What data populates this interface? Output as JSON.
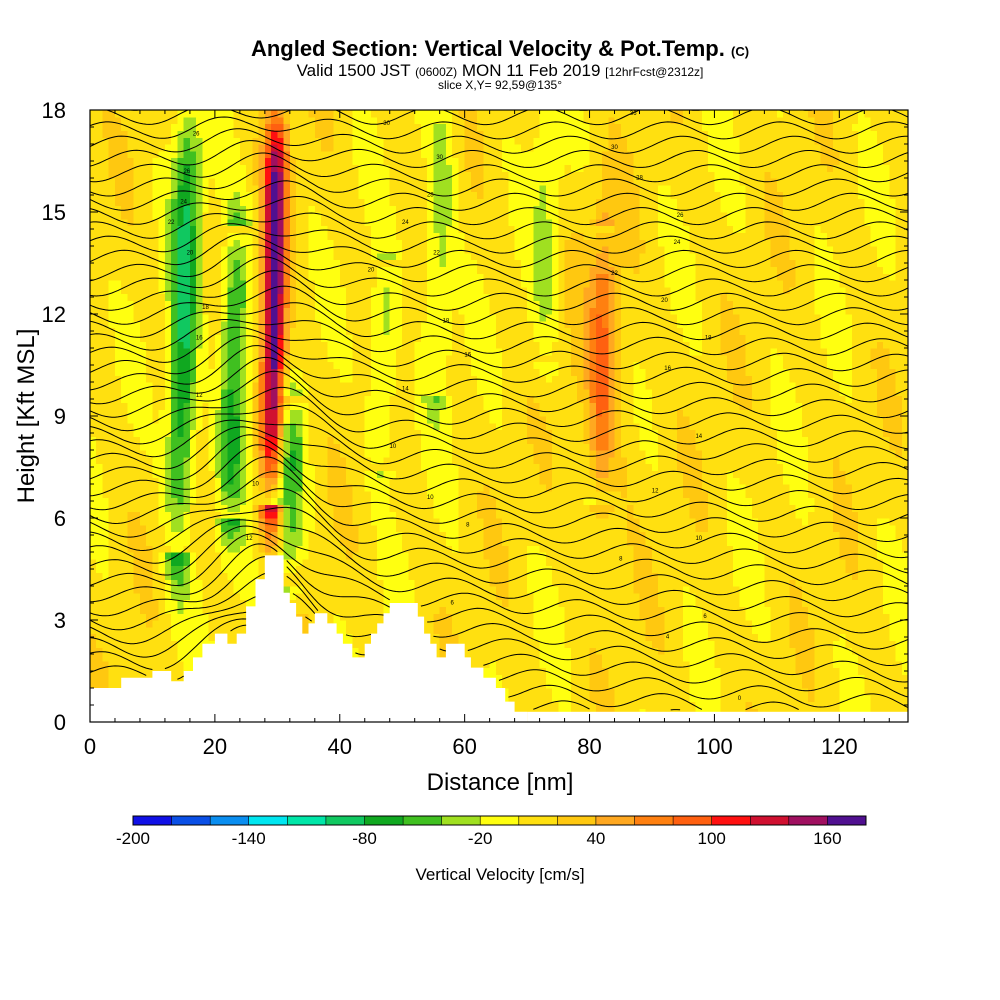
{
  "header": {
    "title": "Angled Section: Vertical Velocity & Pot.Temp.",
    "title_unit": "(C)",
    "valid_main": "Valid 1500 JST",
    "valid_utc": "(0600Z)",
    "valid_date": "MON 11 Feb 2019",
    "forecast": "[12hrFcst@2312z]",
    "slice": "slice X,Y= 92,59@135°"
  },
  "chart_data": {
    "type": "heatmap",
    "title": "Angled Section: Vertical Velocity & Pot.Temp.",
    "xlabel": "Distance [nm]",
    "ylabel": "Height [Kft MSL]",
    "xlim": [
      0,
      131
    ],
    "ylim": [
      0,
      18
    ],
    "x_ticks": [
      0,
      20,
      40,
      60,
      80,
      100,
      120
    ],
    "y_ticks": [
      0,
      3,
      6,
      9,
      12,
      15,
      18
    ],
    "grid": false,
    "colorbar": {
      "label": "Vertical Velocity [cm/s]",
      "range": [
        -200,
        180
      ],
      "step": 20,
      "tick_labels": [
        "-200",
        "-140",
        "-80",
        "-20",
        "40",
        "100",
        "160"
      ],
      "colors": [
        "#1010e6",
        "#0a4fe6",
        "#0a8ef0",
        "#00e6f0",
        "#00e6a8",
        "#10c860",
        "#10a820",
        "#40c020",
        "#a0e020",
        "#ffff10",
        "#ffe010",
        "#ffc810",
        "#ffa820",
        "#ff8010",
        "#ff6010",
        "#ff1010",
        "#d01030",
        "#a01060",
        "#501090"
      ]
    },
    "velocity_features": [
      {
        "type": "updraft",
        "x_center": 29.5,
        "height_range": [
          7,
          18
        ],
        "peak_cm_s": 170
      },
      {
        "type": "downdraft",
        "x_center": 15,
        "height_range": [
          5.5,
          18
        ],
        "min_cm_s": -90
      },
      {
        "type": "downdraft",
        "x_center": 23,
        "height_range": [
          6.5,
          14
        ],
        "min_cm_s": -80
      },
      {
        "type": "downdraft",
        "x_center": 32,
        "height_range": [
          4.5,
          9
        ],
        "min_cm_s": -60
      },
      {
        "type": "downdraft",
        "x_center": 47,
        "height_range": [
          8,
          13
        ],
        "min_cm_s": -40
      },
      {
        "type": "downdraft",
        "x_center": 56,
        "height_range": [
          10,
          18
        ],
        "min_cm_s": -40
      },
      {
        "type": "downdraft",
        "x_center": 73,
        "height_range": [
          11,
          18
        ],
        "min_cm_s": -30
      },
      {
        "type": "updraft",
        "x_center": 82,
        "height_range": [
          7,
          14
        ],
        "peak_cm_s": 50
      }
    ],
    "theta_contour_labels": [
      {
        "x": 17,
        "y": 17.3,
        "v": 26
      },
      {
        "x": 15.5,
        "y": 16.2,
        "v": 26
      },
      {
        "x": 15,
        "y": 15.3,
        "v": 24
      },
      {
        "x": 13,
        "y": 14.7,
        "v": 22
      },
      {
        "x": 16,
        "y": 13.8,
        "v": 20
      },
      {
        "x": 18.5,
        "y": 12.2,
        "v": 18
      },
      {
        "x": 17.5,
        "y": 11.3,
        "v": 16
      },
      {
        "x": 17.5,
        "y": 9.6,
        "v": 12
      },
      {
        "x": 26.5,
        "y": 7.0,
        "v": 10
      },
      {
        "x": 25.5,
        "y": 5.4,
        "v": 12
      },
      {
        "x": 47.5,
        "y": 17.6,
        "v": 30
      },
      {
        "x": 56,
        "y": 16.6,
        "v": 30
      },
      {
        "x": 54.5,
        "y": 15.5,
        "v": 28
      },
      {
        "x": 50.5,
        "y": 14.7,
        "v": 24
      },
      {
        "x": 55.5,
        "y": 13.8,
        "v": 22
      },
      {
        "x": 45,
        "y": 13.3,
        "v": 20
      },
      {
        "x": 57,
        "y": 11.8,
        "v": 18
      },
      {
        "x": 60.5,
        "y": 10.8,
        "v": 16
      },
      {
        "x": 50.5,
        "y": 9.8,
        "v": 14
      },
      {
        "x": 48.5,
        "y": 8.1,
        "v": 10
      },
      {
        "x": 54.5,
        "y": 6.6,
        "v": 10
      },
      {
        "x": 60.5,
        "y": 5.8,
        "v": 8
      },
      {
        "x": 58,
        "y": 3.5,
        "v": 6
      },
      {
        "x": 87,
        "y": 17.9,
        "v": 36
      },
      {
        "x": 84,
        "y": 16.9,
        "v": 30
      },
      {
        "x": 88,
        "y": 16.0,
        "v": 28
      },
      {
        "x": 94.5,
        "y": 14.9,
        "v": 26
      },
      {
        "x": 94,
        "y": 14.1,
        "v": 24
      },
      {
        "x": 84,
        "y": 13.2,
        "v": 22
      },
      {
        "x": 92,
        "y": 12.4,
        "v": 20
      },
      {
        "x": 99,
        "y": 11.3,
        "v": 18
      },
      {
        "x": 92.5,
        "y": 10.4,
        "v": 16
      },
      {
        "x": 97.5,
        "y": 8.4,
        "v": 14
      },
      {
        "x": 90.5,
        "y": 6.8,
        "v": 12
      },
      {
        "x": 97.5,
        "y": 5.4,
        "v": 10
      },
      {
        "x": 85,
        "y": 4.8,
        "v": 8
      },
      {
        "x": 98.5,
        "y": 3.1,
        "v": 6
      },
      {
        "x": 92.5,
        "y": 2.5,
        "v": 4
      },
      {
        "x": 104,
        "y": 0.7,
        "v": 0
      }
    ]
  }
}
